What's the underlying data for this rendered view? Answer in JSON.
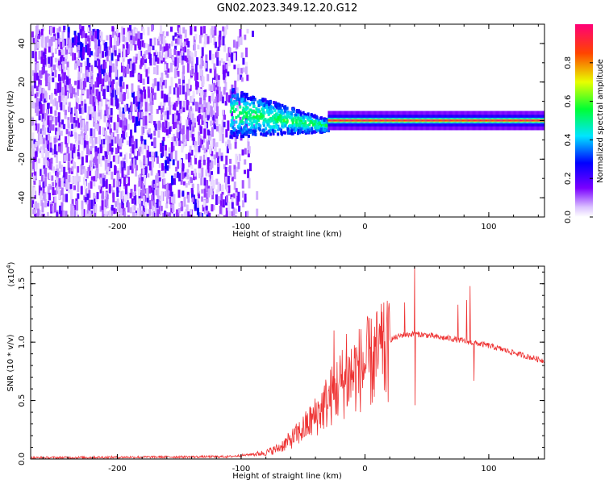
{
  "title": "GN02.2023.349.12.20.G12",
  "chart_data": [
    {
      "type": "heatmap",
      "xlabel": "Height of straight line (km)",
      "ylabel": "Frequency (Hz)",
      "xlim": [
        -270,
        145
      ],
      "ylim": [
        -50,
        50
      ],
      "x_ticks": [
        "-200",
        "-100",
        "0",
        "100"
      ],
      "x_tick_values": [
        -200,
        -100,
        0,
        100
      ],
      "y_ticks": [
        "-40",
        "-20",
        "0",
        "20",
        "40"
      ],
      "y_tick_values": [
        -40,
        -20,
        0,
        20,
        40
      ],
      "colorbar": {
        "label": "Normalized spectral amplitude",
        "range": [
          0,
          1
        ],
        "ticks": [
          "0.0",
          "0.2",
          "0.4",
          "0.6",
          "0.8"
        ],
        "tick_values": [
          0,
          0.2,
          0.4,
          0.6,
          0.8
        ]
      },
      "regions": [
        {
          "x_range": [
            -270,
            -105
          ],
          "freq_range": [
            -50,
            50
          ],
          "amplitude": [
            0.05,
            0.2
          ]
        },
        {
          "x_range": [
            -110,
            -30
          ],
          "freq_center": [
            5,
            -2
          ],
          "amplitude": [
            0.2,
            0.5
          ]
        },
        {
          "x_range": [
            -30,
            145
          ],
          "freq_center": 0,
          "amplitude": [
            0.85,
            1.0
          ]
        }
      ]
    },
    {
      "type": "line",
      "xlabel": "Height of straight line (km)",
      "ylabel": "SNR (10 * v/v)",
      "multiplier_label": "(x10",
      "multiplier_exp": "4",
      "multiplier_close": ")",
      "xlim": [
        -270,
        145
      ],
      "ylim": [
        0,
        16500
      ],
      "x_ticks": [
        "-200",
        "-100",
        "0",
        "100"
      ],
      "x_tick_values": [
        -200,
        -100,
        0,
        100
      ],
      "y_ticks": [
        "0.0",
        "0.5",
        "1.0",
        "1.5"
      ],
      "y_tick_values": [
        0,
        5000,
        10000,
        15000
      ],
      "series": [
        {
          "color": "#ee3333",
          "envelope_x": [
            -270,
            -200,
            -110,
            -95,
            -80,
            -70,
            -60,
            -50,
            -40,
            -30,
            -20,
            -10,
            0,
            10,
            20,
            30,
            40,
            50,
            60,
            70,
            80,
            90,
            100,
            110,
            120,
            130,
            145
          ],
          "envelope_y": [
            100,
            150,
            200,
            350,
            600,
            1000,
            1800,
            2800,
            4000,
            5500,
            7000,
            8000,
            8800,
            9600,
            10200,
            10600,
            10700,
            10600,
            10400,
            10300,
            10100,
            9900,
            9700,
            9400,
            9100,
            8800,
            8400
          ],
          "spikes": [
            {
              "x": 40,
              "y": 16500
            },
            {
              "x": 40.5,
              "y": 4600
            },
            {
              "x": 32,
              "y": 13400
            },
            {
              "x": 85,
              "y": 14800
            },
            {
              "x": 88,
              "y": 6700
            },
            {
              "x": 82,
              "y": 13600
            },
            {
              "x": 75,
              "y": 13200
            },
            {
              "x": -25,
              "y": 11000
            },
            {
              "x": -15,
              "y": 10700
            },
            {
              "x": 5,
              "y": 12000
            },
            {
              "x": 14,
              "y": 12600
            }
          ]
        }
      ]
    }
  ]
}
